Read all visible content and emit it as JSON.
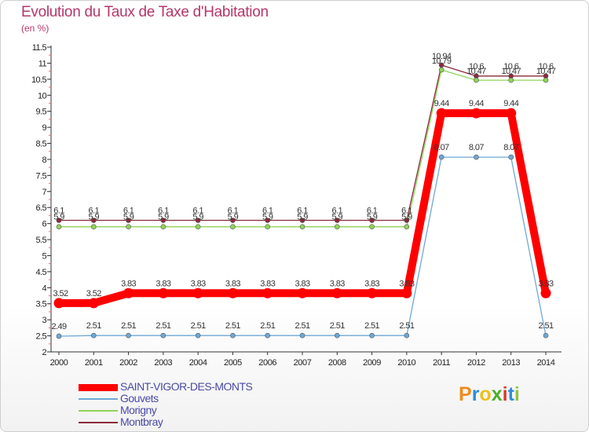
{
  "header": {
    "title": "Evolution du Taux de Taxe d'Habitation",
    "unit": "(en %)"
  },
  "logo": {
    "text": "Proxiti",
    "colors": [
      "#f08c1a",
      "#2a8fd6",
      "#f0c01a",
      "#4caf2a",
      "#d63a2a",
      "#2a8fd6",
      "#8cc63f"
    ]
  },
  "chart_data": {
    "type": "line",
    "x": [
      "2000",
      "2001",
      "2002",
      "2003",
      "2004",
      "2005",
      "2006",
      "2007",
      "2008",
      "2009",
      "2010",
      "2011",
      "2012",
      "2013",
      "2014"
    ],
    "ylim": [
      2,
      11.5
    ],
    "yticks": [
      "2",
      "2.5",
      "3",
      "3.5",
      "4",
      "4.5",
      "5",
      "5.5",
      "6",
      "6.5",
      "7",
      "7.5",
      "8",
      "8.5",
      "9",
      "9.5",
      "10",
      "10.5",
      "11",
      "11.5"
    ],
    "grid": false,
    "legend_position": "bottom-left",
    "series": [
      {
        "name": "SAINT-VIGOR-DES-MONTS",
        "color": "#ff0000",
        "values": [
          3.52,
          3.52,
          3.83,
          3.83,
          3.83,
          3.83,
          3.83,
          3.83,
          3.83,
          3.83,
          3.83,
          9.44,
          9.44,
          9.44,
          3.83
        ],
        "labels": [
          "3.52",
          "3.52",
          "3.83",
          "3.83",
          "3.83",
          "3.83",
          "3.83",
          "3.83",
          "3.83",
          "3.83",
          "3.83",
          "9.44",
          "9.44",
          "9.44",
          "3.83"
        ]
      },
      {
        "name": "Gouvets",
        "color": "#6fa8d6",
        "values": [
          2.49,
          2.51,
          2.51,
          2.51,
          2.51,
          2.51,
          2.51,
          2.51,
          2.51,
          2.51,
          2.51,
          8.07,
          8.07,
          8.07,
          2.51
        ],
        "labels": [
          "2.49",
          "2.51",
          "2.51",
          "2.51",
          "2.51",
          "2.51",
          "2.51",
          "2.51",
          "2.51",
          "2.51",
          "2.51",
          "8.07",
          "8.07",
          "8.07",
          "2.51"
        ]
      },
      {
        "name": "Morigny",
        "color": "#8fd45a",
        "values": [
          5.9,
          5.9,
          5.9,
          5.9,
          5.9,
          5.9,
          5.9,
          5.9,
          5.9,
          5.9,
          5.9,
          10.79,
          10.47,
          10.47,
          10.47
        ],
        "labels": [
          "5.9",
          "5.9",
          "5.9",
          "5.9",
          "5.9",
          "5.9",
          "5.9",
          "5.9",
          "5.9",
          "5.9",
          "5.9",
          "10.79",
          "10.47",
          "10.47",
          "10.47"
        ]
      },
      {
        "name": "Montbray",
        "color": "#8a2a3a",
        "values": [
          6.1,
          6.1,
          6.1,
          6.1,
          6.1,
          6.1,
          6.1,
          6.1,
          6.1,
          6.1,
          6.1,
          10.94,
          10.6,
          10.6,
          10.6
        ],
        "labels": [
          "6.1",
          "6.1",
          "6.1",
          "6.1",
          "6.1",
          "6.1",
          "6.1",
          "6.1",
          "6.1",
          "6.1",
          "6.1",
          "10.94",
          "10.6",
          "10.6",
          "10.6"
        ]
      }
    ]
  }
}
